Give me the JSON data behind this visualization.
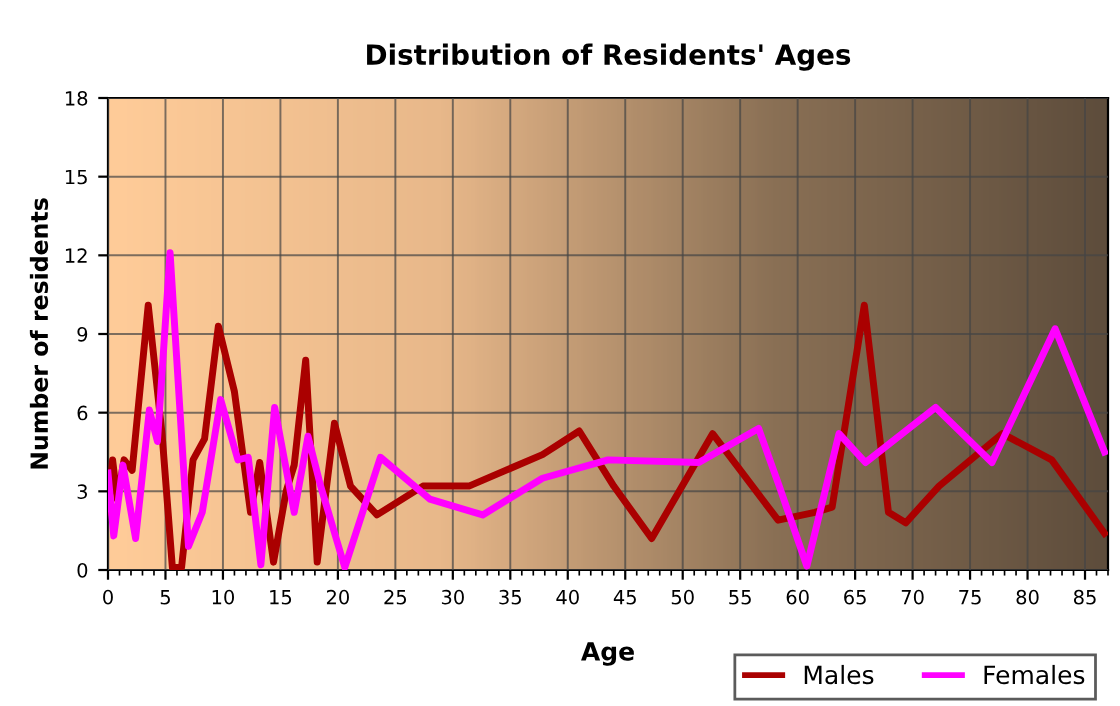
{
  "chart_data": {
    "type": "line",
    "title": "Distribution of Residents' Ages",
    "xlabel": "Age",
    "ylabel": "Number of residents",
    "xlim": [
      0,
      87
    ],
    "xticks": [
      0,
      5,
      10,
      15,
      20,
      25,
      30,
      35,
      40,
      45,
      50,
      55,
      60,
      65,
      70,
      75,
      80,
      85
    ],
    "ylim": [
      0,
      18
    ],
    "yticks": [
      0,
      3,
      6,
      9,
      12,
      15,
      18
    ],
    "grid": true,
    "legend": "bottom right",
    "marker": "none",
    "line_style": "solid",
    "series": [
      {
        "name": "Males",
        "color": "#aa0000",
        "x": [
          0,
          0.4,
          0.8,
          1.4,
          2.1,
          3.5,
          4.7,
          5.6,
          6.4,
          7.4,
          8.4,
          9.6,
          11,
          12.4,
          13.2,
          14.4,
          15.5,
          16.2,
          17.2,
          18.2,
          19.7,
          21.1,
          23.4,
          27.4,
          31.4,
          37.8,
          41,
          44,
          47.3,
          52.6,
          58.3,
          61.5,
          63,
          65.8,
          67.9,
          69.4,
          72.3,
          77.8,
          82.1,
          86.7
        ],
        "values": [
          2.2,
          4.2,
          2.7,
          4.2,
          3.8,
          10.1,
          5.2,
          0.1,
          0.1,
          4.2,
          5,
          9.3,
          6.8,
          2.2,
          4.1,
          0.3,
          3,
          4,
          8,
          0.3,
          5.6,
          3.2,
          2.1,
          3.2,
          3.2,
          4.4,
          5.3,
          3.2,
          1.2,
          5.2,
          1.9,
          2.2,
          2.4,
          10.1,
          2.2,
          1.8,
          3.2,
          5.2,
          4.2,
          1.4
        ]
      },
      {
        "name": "Females",
        "color": "#ff00ff",
        "x": [
          0,
          0.5,
          1.3,
          2.4,
          3.6,
          4.3,
          5.4,
          7,
          8.2,
          9.8,
          11.3,
          12.2,
          13.3,
          14.5,
          16.2,
          17.4,
          18.5,
          20.6,
          23.7,
          28,
          32.6,
          37.8,
          43.5,
          51.4,
          56.6,
          58.4,
          60.8,
          63.6,
          65.9,
          72,
          76.9,
          82.4,
          86.7
        ],
        "values": [
          3.7,
          1.3,
          4,
          1.2,
          6.1,
          4.9,
          12.1,
          0.9,
          2.2,
          6.5,
          4.2,
          4.3,
          0.2,
          6.2,
          2.2,
          5.1,
          3.2,
          0.1,
          4.3,
          2.7,
          2.1,
          3.5,
          4.2,
          4.1,
          5.4,
          3.2,
          0.15,
          5.2,
          4.1,
          6.2,
          4.1,
          9.2,
          4.5
        ]
      }
    ]
  }
}
